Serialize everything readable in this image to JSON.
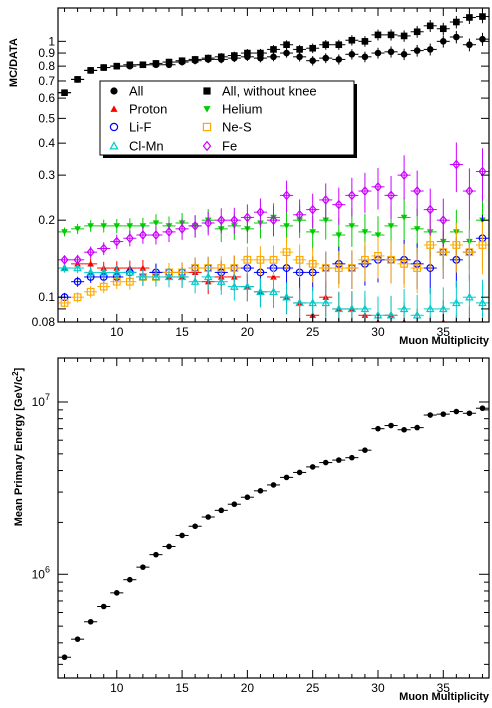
{
  "chart_data": [
    {
      "type": "scatter",
      "xlabel": "Muon Multiplicity",
      "ylabel": "MC/DATA",
      "yscale": "log",
      "xlim": [
        5.5,
        38.5
      ],
      "ylim": [
        0.08,
        1.35
      ],
      "x_ticks": [
        10,
        15,
        20,
        25,
        30,
        35
      ],
      "y_ticks": [
        0.08,
        0.1,
        0.2,
        0.3,
        0.4,
        0.5,
        0.6,
        0.7,
        0.8,
        0.9,
        1
      ],
      "y_tick_labels": [
        "0.08",
        "0.1",
        "0.2",
        "0.3",
        "0.4",
        "0.5",
        "0.6",
        "0.7",
        "0.8",
        "0.9",
        "1"
      ],
      "legend_position": "upper-left, inside",
      "series": [
        {
          "name": "All",
          "marker": "circle-filled",
          "color": "#000000",
          "x": [
            6,
            7,
            8,
            9,
            10,
            11,
            12,
            13,
            14,
            15,
            16,
            17,
            18,
            19,
            20,
            21,
            22,
            23,
            24,
            25,
            26,
            27,
            28,
            29,
            30,
            31,
            32,
            33,
            34,
            35,
            36,
            37,
            38
          ],
          "y": [
            0.63,
            0.71,
            0.77,
            0.79,
            0.8,
            0.8,
            0.81,
            0.81,
            0.81,
            0.83,
            0.84,
            0.85,
            0.85,
            0.86,
            0.87,
            0.86,
            0.87,
            0.9,
            0.87,
            0.84,
            0.86,
            0.85,
            0.89,
            0.87,
            0.9,
            0.91,
            0.89,
            0.92,
            0.93,
            1.0,
            1.04,
            0.97,
            1.02
          ]
        },
        {
          "name": "All, without knee",
          "marker": "square-filled",
          "color": "#000000",
          "x": [
            6,
            7,
            8,
            9,
            10,
            11,
            12,
            13,
            14,
            15,
            16,
            17,
            18,
            19,
            20,
            21,
            22,
            23,
            24,
            25,
            26,
            27,
            28,
            29,
            30,
            31,
            32,
            33,
            34,
            35,
            36,
            37,
            38
          ],
          "y": [
            0.63,
            0.71,
            0.77,
            0.79,
            0.8,
            0.81,
            0.81,
            0.82,
            0.83,
            0.84,
            0.85,
            0.86,
            0.87,
            0.88,
            0.9,
            0.9,
            0.93,
            0.97,
            0.93,
            0.94,
            0.97,
            0.97,
            1.01,
            1.0,
            1.06,
            1.06,
            1.05,
            1.09,
            1.15,
            1.12,
            1.19,
            1.24,
            1.25
          ]
        },
        {
          "name": "Proton",
          "marker": "triangle-up-filled",
          "color": "#ff0000",
          "x": [
            6,
            7,
            8,
            9,
            10,
            11,
            12,
            13,
            14,
            15,
            16,
            17,
            18,
            19,
            20,
            21,
            22,
            23,
            24,
            25,
            26,
            27,
            28,
            29,
            30,
            31,
            32,
            33,
            34,
            35,
            36,
            37,
            38
          ],
          "y": [
            0.13,
            0.135,
            0.135,
            0.13,
            0.13,
            0.13,
            0.13,
            0.125,
            0.12,
            0.12,
            0.125,
            0.115,
            0.12,
            0.12,
            0.11,
            0.105,
            0.12,
            0.1,
            0.095,
            0.085,
            0.1,
            0.09,
            0.09,
            0.085,
            0.08,
            0.085,
            0.08,
            0.075,
            0.07,
            0.08,
            0.07,
            0.075,
            0.07
          ]
        },
        {
          "name": "Helium",
          "marker": "triangle-down-filled",
          "color": "#00cc00",
          "x": [
            6,
            7,
            8,
            9,
            10,
            11,
            12,
            13,
            14,
            15,
            16,
            17,
            18,
            19,
            20,
            21,
            22,
            23,
            24,
            25,
            26,
            27,
            28,
            29,
            30,
            31,
            32,
            33,
            34,
            35,
            36,
            37,
            38
          ],
          "y": [
            0.18,
            0.185,
            0.19,
            0.19,
            0.19,
            0.19,
            0.19,
            0.195,
            0.19,
            0.195,
            0.19,
            0.2,
            0.185,
            0.19,
            0.185,
            0.195,
            0.205,
            0.19,
            0.2,
            0.18,
            0.2,
            0.175,
            0.19,
            0.18,
            0.175,
            0.19,
            0.205,
            0.185,
            0.18,
            0.165,
            0.18,
            0.165,
            0.2
          ]
        },
        {
          "name": "Li-F",
          "marker": "circle-open",
          "color": "#0000ff",
          "x": [
            6,
            7,
            8,
            9,
            10,
            11,
            12,
            13,
            14,
            15,
            16,
            17,
            18,
            19,
            20,
            21,
            22,
            23,
            24,
            25,
            26,
            27,
            28,
            29,
            30,
            31,
            32,
            33,
            34,
            35,
            36,
            37,
            38
          ],
          "y": [
            0.1,
            0.115,
            0.12,
            0.12,
            0.12,
            0.125,
            0.12,
            0.125,
            0.125,
            0.125,
            0.13,
            0.13,
            0.125,
            0.13,
            0.13,
            0.125,
            0.13,
            0.13,
            0.125,
            0.125,
            0.13,
            0.135,
            0.13,
            0.135,
            0.14,
            0.14,
            0.14,
            0.135,
            0.13,
            0.15,
            0.14,
            0.15,
            0.17
          ]
        },
        {
          "name": "Ne-S",
          "marker": "square-open",
          "color": "#ffaa00",
          "x": [
            6,
            7,
            8,
            9,
            10,
            11,
            12,
            13,
            14,
            15,
            16,
            17,
            18,
            19,
            20,
            21,
            22,
            23,
            24,
            25,
            26,
            27,
            28,
            29,
            30,
            31,
            32,
            33,
            34,
            35,
            36,
            37,
            38
          ],
          "y": [
            0.095,
            0.1,
            0.105,
            0.11,
            0.115,
            0.115,
            0.12,
            0.12,
            0.125,
            0.125,
            0.13,
            0.13,
            0.13,
            0.13,
            0.14,
            0.14,
            0.14,
            0.15,
            0.14,
            0.135,
            0.13,
            0.13,
            0.13,
            0.14,
            0.145,
            0.14,
            0.135,
            0.13,
            0.16,
            0.15,
            0.16,
            0.15,
            0.16
          ]
        },
        {
          "name": "Cl-Mn",
          "marker": "triangle-up-open",
          "color": "#00cccc",
          "x": [
            6,
            7,
            8,
            9,
            10,
            11,
            12,
            13,
            14,
            15,
            16,
            17,
            18,
            19,
            20,
            21,
            22,
            23,
            24,
            25,
            26,
            27,
            28,
            29,
            30,
            31,
            32,
            33,
            34,
            35,
            36,
            37,
            38
          ],
          "y": [
            0.13,
            0.13,
            0.125,
            0.125,
            0.125,
            0.125,
            0.12,
            0.12,
            0.12,
            0.12,
            0.115,
            0.12,
            0.115,
            0.11,
            0.11,
            0.105,
            0.105,
            0.1,
            0.095,
            0.095,
            0.095,
            0.09,
            0.09,
            0.09,
            0.085,
            0.085,
            0.09,
            0.085,
            0.09,
            0.09,
            0.095,
            0.1,
            0.095
          ]
        },
        {
          "name": "Fe",
          "marker": "diamond-open",
          "color": "#cc00ff",
          "x": [
            6,
            7,
            8,
            9,
            10,
            11,
            12,
            13,
            14,
            15,
            16,
            17,
            18,
            19,
            20,
            21,
            22,
            23,
            24,
            25,
            26,
            27,
            28,
            29,
            30,
            31,
            32,
            33,
            34,
            35,
            36,
            37,
            38
          ],
          "y": [
            0.14,
            0.14,
            0.15,
            0.155,
            0.165,
            0.17,
            0.175,
            0.175,
            0.18,
            0.185,
            0.19,
            0.195,
            0.2,
            0.2,
            0.205,
            0.215,
            0.2,
            0.25,
            0.21,
            0.22,
            0.24,
            0.23,
            0.25,
            0.26,
            0.27,
            0.25,
            0.3,
            0.26,
            0.22,
            0.2,
            0.33,
            0.26,
            0.31
          ]
        }
      ]
    },
    {
      "type": "scatter",
      "xlabel": "Muon Multiplicity",
      "ylabel": "Mean Primary Energy [GeV/c",
      "ylabel_superscript": "2",
      "ylabel_close": "]",
      "yscale": "log",
      "xlim": [
        5.5,
        38.5
      ],
      "ylim": [
        250000,
        18000000
      ],
      "x_ticks": [
        10,
        15,
        20,
        25,
        30,
        35
      ],
      "y_ticks": [
        1000000,
        10000000
      ],
      "y_tick_labels": [
        {
          "base": "10",
          "exp": "6"
        },
        {
          "base": "10",
          "exp": "7"
        }
      ],
      "series": [
        {
          "marker": "circle-filled",
          "color": "#000000",
          "x": [
            6,
            7,
            8,
            9,
            10,
            11,
            12,
            13,
            14,
            15,
            16,
            17,
            18,
            19,
            20,
            21,
            22,
            23,
            24,
            25,
            26,
            27,
            28,
            29,
            30,
            31,
            32,
            33,
            34,
            35,
            36,
            37,
            38
          ],
          "y": [
            330000,
            420000,
            530000,
            650000,
            780000,
            930000,
            1100000,
            1300000,
            1450000,
            1680000,
            1900000,
            2150000,
            2350000,
            2550000,
            2800000,
            3050000,
            3300000,
            3650000,
            3900000,
            4200000,
            4450000,
            4600000,
            4750000,
            5250000,
            7000000,
            7300000,
            6900000,
            7100000,
            8400000,
            8500000,
            8800000,
            8600000,
            9200000
          ]
        }
      ]
    }
  ]
}
